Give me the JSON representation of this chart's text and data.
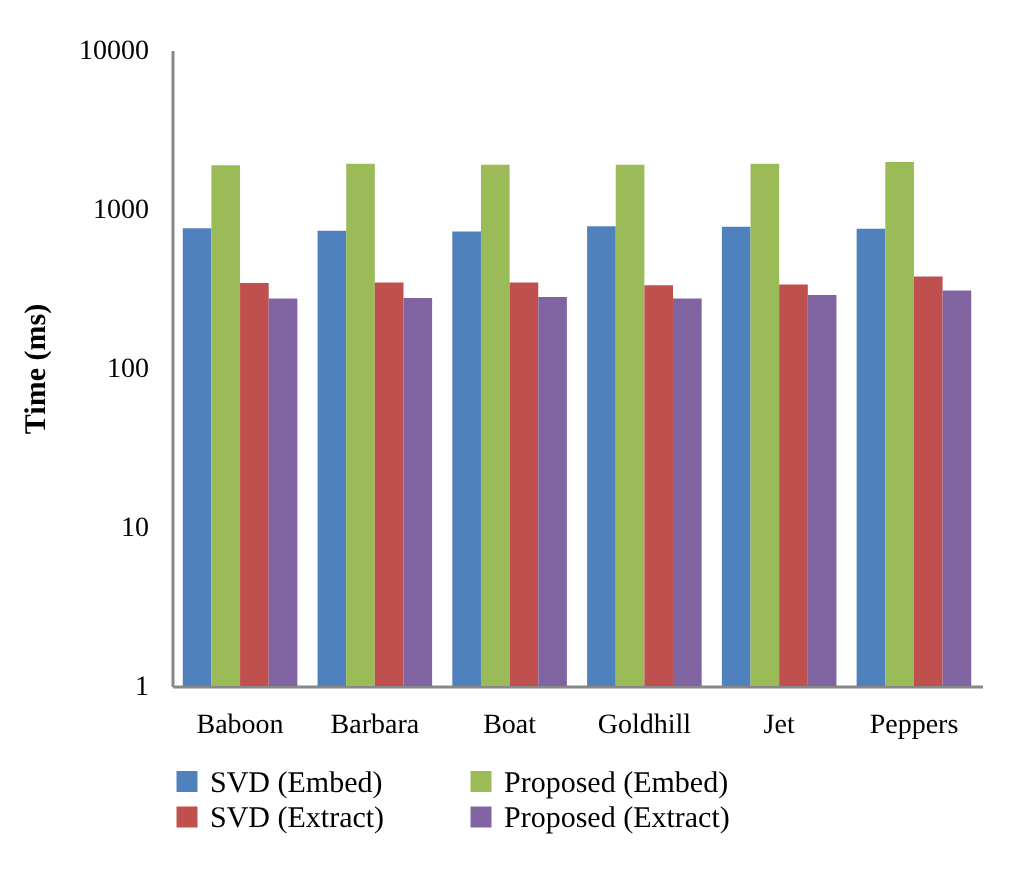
{
  "chart_data": {
    "type": "bar",
    "ylabel": "Time (ms)",
    "log": true,
    "ylim": [
      1,
      10000
    ],
    "yticks": [
      1,
      10,
      100,
      1000,
      10000
    ],
    "grid": false,
    "legend": "bottom",
    "categories": [
      "Baboon",
      "Barbara",
      "Boat",
      "Goldhill",
      "Jet",
      "Peppers"
    ],
    "series": [
      {
        "name": "SVD (Embed)",
        "color": "#4f81bd",
        "values": [
          757,
          729,
          722,
          778,
          772,
          750
        ]
      },
      {
        "name": "Proposed (Embed)",
        "color": "#9bbb59",
        "values": [
          1884,
          1923,
          1900,
          1900,
          1923,
          1977
        ]
      },
      {
        "name": "SVD (Extract)",
        "color": "#c0504d",
        "values": [
          342,
          345,
          345,
          332,
          335,
          376
        ]
      },
      {
        "name": "Proposed (Extract)",
        "color": "#8064a2",
        "values": [
          274,
          276,
          280,
          274,
          288,
          307
        ]
      }
    ]
  }
}
